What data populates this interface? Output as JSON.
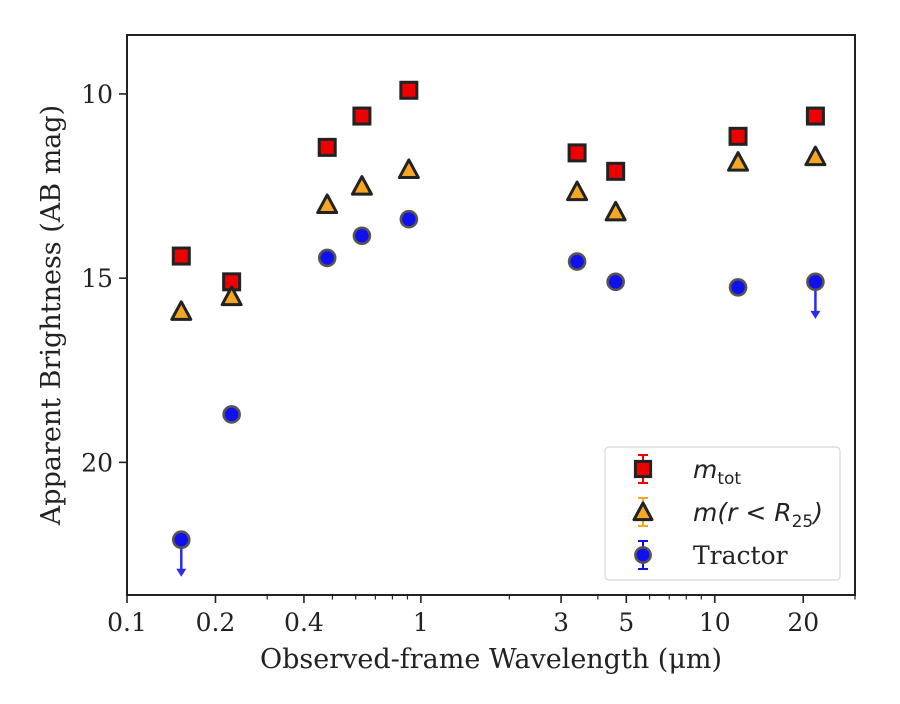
{
  "chart_data": {
    "type": "scatter",
    "xlabel": "Observed-frame Wavelength (μm)",
    "ylabel": "Apparent Brightness (AB mag)",
    "x_scale": "log",
    "xlim": [
      0.1,
      30
    ],
    "ylim": [
      23.6,
      8.4
    ],
    "y_inverted": true,
    "grid": false,
    "legend_position": "lower-right",
    "x_ticks": [
      {
        "value": 0.1,
        "label": "0.1"
      },
      {
        "value": 0.2,
        "label": "0.2"
      },
      {
        "value": 0.4,
        "label": "0.4"
      },
      {
        "value": 1,
        "label": "1"
      },
      {
        "value": 3,
        "label": "3"
      },
      {
        "value": 5,
        "label": "5"
      },
      {
        "value": 10,
        "label": "10"
      },
      {
        "value": 20,
        "label": "20"
      }
    ],
    "y_ticks": [
      {
        "value": 10,
        "label": "10"
      },
      {
        "value": 15,
        "label": "15"
      },
      {
        "value": 20,
        "label": "20"
      }
    ],
    "series": [
      {
        "name": "m_tot",
        "legend_main": "m",
        "legend_sub": "tot",
        "marker": "square",
        "color": "#ee0000",
        "edge_color": "#222222",
        "points": [
          {
            "x": 0.153,
            "y": 14.4
          },
          {
            "x": 0.227,
            "y": 15.1
          },
          {
            "x": 0.48,
            "y": 11.45
          },
          {
            "x": 0.63,
            "y": 10.6
          },
          {
            "x": 0.91,
            "y": 9.9
          },
          {
            "x": 3.4,
            "y": 11.6
          },
          {
            "x": 4.6,
            "y": 12.1
          },
          {
            "x": 12.0,
            "y": 11.15
          },
          {
            "x": 22.0,
            "y": 10.6
          }
        ]
      },
      {
        "name": "m(r < R_25)",
        "legend_main": "m(r < R",
        "legend_sub": "25",
        "legend_end": ")",
        "marker": "triangle",
        "color": "#f5a623",
        "edge_color": "#222222",
        "points": [
          {
            "x": 0.153,
            "y": 15.9
          },
          {
            "x": 0.227,
            "y": 15.5
          },
          {
            "x": 0.48,
            "y": 13.0
          },
          {
            "x": 0.63,
            "y": 12.5
          },
          {
            "x": 0.91,
            "y": 12.05
          },
          {
            "x": 3.4,
            "y": 12.65
          },
          {
            "x": 4.6,
            "y": 13.2
          },
          {
            "x": 12.0,
            "y": 11.85
          },
          {
            "x": 22.0,
            "y": 11.7
          }
        ]
      },
      {
        "name": "Tractor",
        "legend_main": "Tractor",
        "marker": "circle",
        "color": "#1010ee",
        "edge_color": "#555555",
        "points": [
          {
            "x": 0.153,
            "y": 22.1,
            "upper_limit": true
          },
          {
            "x": 0.227,
            "y": 18.7
          },
          {
            "x": 0.48,
            "y": 14.45
          },
          {
            "x": 0.63,
            "y": 13.85
          },
          {
            "x": 0.91,
            "y": 13.4
          },
          {
            "x": 3.4,
            "y": 14.55
          },
          {
            "x": 4.6,
            "y": 15.1
          },
          {
            "x": 12.0,
            "y": 15.25
          },
          {
            "x": 22.0,
            "y": 15.1,
            "upper_limit": true
          }
        ]
      }
    ]
  }
}
